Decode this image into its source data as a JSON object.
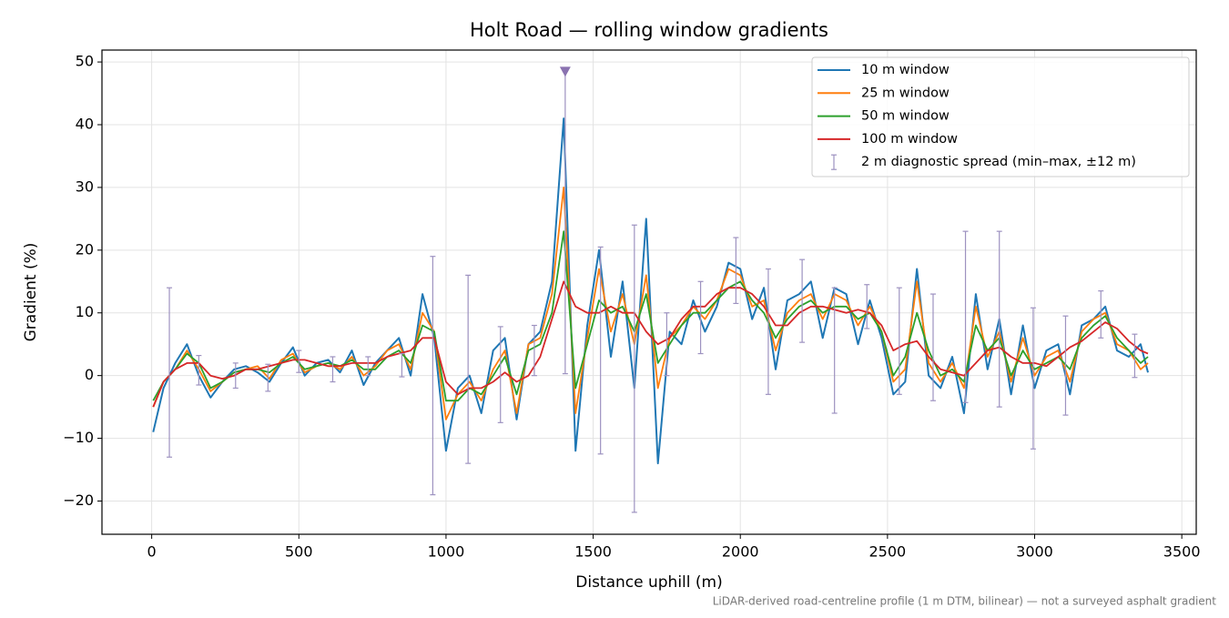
{
  "chart_data": {
    "type": "line",
    "title": "Holt Road — rolling window gradients",
    "x_label": "Distance uphill (m)",
    "y_label": "Gradient (%)",
    "footnote": "LiDAR-derived road-centreline profile (1 m DTM, bilinear) — not a surveyed asphalt gradient",
    "xlim": [
      -169,
      3549
    ],
    "ylim": [
      -25.3,
      51.9
    ],
    "xticks": [
      0,
      500,
      1000,
      1500,
      2000,
      2500,
      3000,
      3500
    ],
    "yticks": [
      {
        "value": -20,
        "label": "−20"
      },
      {
        "value": -10,
        "label": "−10"
      },
      0,
      10,
      20,
      30,
      40,
      50
    ],
    "grid": true,
    "legend": "upper right",
    "x": [
      5,
      40,
      80,
      120,
      160,
      200,
      240,
      280,
      320,
      360,
      400,
      440,
      480,
      520,
      560,
      600,
      640,
      680,
      720,
      760,
      800,
      840,
      880,
      920,
      960,
      1000,
      1040,
      1080,
      1120,
      1160,
      1200,
      1240,
      1280,
      1320,
      1360,
      1400,
      1440,
      1480,
      1520,
      1560,
      1600,
      1640,
      1680,
      1720,
      1760,
      1800,
      1840,
      1880,
      1920,
      1960,
      2000,
      2040,
      2080,
      2120,
      2160,
      2200,
      2240,
      2280,
      2320,
      2360,
      2400,
      2440,
      2480,
      2520,
      2560,
      2600,
      2640,
      2680,
      2720,
      2760,
      2800,
      2840,
      2880,
      2920,
      2960,
      3000,
      3040,
      3080,
      3120,
      3160,
      3200,
      3240,
      3280,
      3320,
      3360,
      3385
    ],
    "series": [
      {
        "name": "10 m window",
        "color": "#1f77b4",
        "width": 2,
        "values": [
          -9,
          -2,
          2,
          5,
          0,
          -3.5,
          -1,
          1,
          1.5,
          0.5,
          -1,
          2,
          4.5,
          0,
          2,
          2.5,
          0.5,
          4,
          -1.5,
          2,
          4,
          6,
          0,
          13,
          6,
          -12,
          -2,
          0,
          -6,
          4,
          6,
          -7,
          5,
          7,
          15,
          41,
          -12,
          8,
          20,
          3,
          15,
          -2,
          25,
          -14,
          7,
          5,
          12,
          7,
          11,
          18,
          17,
          9,
          14,
          1,
          12,
          13,
          15,
          6,
          14,
          13,
          5,
          12,
          6,
          -3,
          -1,
          17,
          0,
          -2,
          3,
          -6,
          13,
          1,
          9,
          -3,
          8,
          -2,
          4,
          5,
          -3,
          8,
          9,
          11,
          4,
          3,
          5,
          0.5
        ]
      },
      {
        "name": "25 m window",
        "color": "#ff7f0e",
        "width": 1.8,
        "values": [
          -5,
          -1,
          1,
          4,
          1,
          -2.5,
          -1,
          0.5,
          1,
          1.5,
          -0.5,
          2.5,
          3.5,
          0.5,
          1.5,
          2,
          1,
          3,
          0,
          1.5,
          4,
          5,
          1,
          10,
          7,
          -7,
          -3,
          -1,
          -4,
          1,
          4,
          -6,
          5,
          6,
          13,
          30,
          -6,
          6,
          17,
          7,
          13,
          5,
          16,
          -2,
          6,
          8,
          11,
          9,
          12,
          17,
          16,
          11,
          12,
          4,
          10,
          12,
          13,
          9,
          13,
          12,
          8,
          11,
          7,
          -1,
          1,
          15,
          2,
          -1,
          2,
          -2,
          11,
          3,
          7,
          -1,
          6,
          0,
          3,
          4,
          -1,
          7,
          9,
          10,
          5,
          4,
          1,
          2
        ]
      },
      {
        "name": "50 m window",
        "color": "#2ca02c",
        "width": 1.8,
        "values": [
          -4,
          -1,
          1,
          3.5,
          2,
          -2,
          -1,
          0.5,
          1,
          1,
          0.5,
          2,
          3,
          1,
          1.5,
          2,
          1.5,
          2.5,
          1,
          1,
          3,
          4,
          2,
          8,
          7,
          -4,
          -4,
          -2,
          -3,
          0,
          3,
          -3,
          4,
          5,
          10,
          23,
          -2,
          5,
          12,
          10,
          11,
          7,
          13,
          2,
          5,
          8,
          10,
          10,
          12,
          14,
          15,
          12,
          10,
          6,
          9,
          11,
          12,
          10,
          11,
          11,
          9,
          10,
          7,
          0,
          3,
          10,
          4,
          0,
          1,
          -1,
          8,
          4,
          6,
          0,
          4,
          1,
          2,
          3,
          1,
          6,
          8,
          9.5,
          6,
          4,
          2,
          3
        ]
      },
      {
        "name": "100 m window",
        "color": "#d62728",
        "width": 1.8,
        "values": [
          -5,
          -1,
          1,
          2,
          2,
          0,
          -0.5,
          0,
          1,
          1,
          1.5,
          2,
          2.5,
          2.5,
          2,
          1.5,
          1.5,
          2,
          2,
          2,
          3,
          3.5,
          4,
          6,
          6,
          -1,
          -3,
          -2,
          -2,
          -1,
          0.5,
          -1,
          0,
          3,
          9,
          15,
          11,
          10,
          10,
          11,
          10,
          10,
          7,
          5,
          6,
          9,
          11,
          11,
          13,
          14,
          14,
          13,
          11,
          8,
          8,
          10,
          11,
          11,
          10.5,
          10,
          10.5,
          10,
          8,
          4,
          5,
          5.5,
          3,
          1,
          0.5,
          0,
          2,
          4,
          4.5,
          3,
          2,
          2,
          1.5,
          3,
          4.5,
          5.5,
          7,
          8.5,
          7.5,
          5.5,
          4,
          3.5
        ]
      }
    ],
    "errorbars": {
      "name": "2 m diagnostic spread (min–max, ±12 m)",
      "color": "#9d92c0",
      "x": [
        60,
        160,
        285,
        395,
        500,
        615,
        735,
        850,
        955,
        1075,
        1185,
        1300,
        1405,
        1525,
        1640,
        1750,
        1865,
        1985,
        2095,
        2210,
        2320,
        2430,
        2540,
        2655,
        2765,
        2880,
        2995,
        3105,
        3225,
        3340
      ],
      "low": [
        -13,
        -1.5,
        -2,
        -2.5,
        0.5,
        -1,
        0,
        -0.2,
        -19,
        -14,
        -7.5,
        0,
        0.3,
        -12.5,
        -21.8,
        0,
        3.5,
        11.5,
        -3,
        5.3,
        -6,
        7.5,
        -3,
        -4,
        -4.3,
        -5,
        -11.7,
        -6.3,
        6,
        -0.3
      ],
      "high": [
        14,
        3.2,
        2,
        1.8,
        4,
        3,
        3,
        3.5,
        19,
        16,
        7.8,
        8,
        48.5,
        20.5,
        24,
        10,
        15,
        22,
        17,
        18.5,
        14,
        14.5,
        14,
        13,
        23,
        23,
        10.8,
        9.5,
        13.5,
        6.6
      ]
    },
    "clip_marker": {
      "x": 1405,
      "y": 48.5,
      "color": "#8a72b0"
    }
  }
}
